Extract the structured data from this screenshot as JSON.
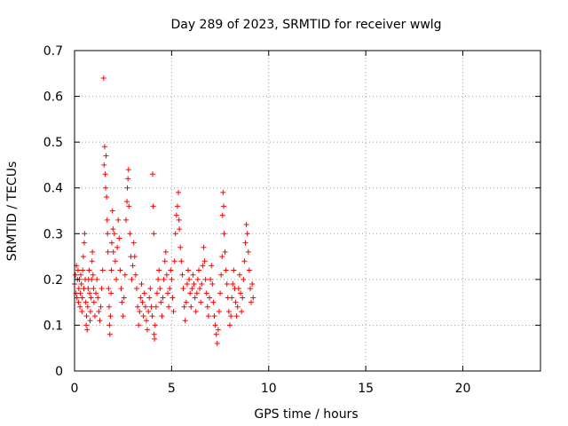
{
  "chart_data": {
    "type": "scatter",
    "title": "Day 289 of 2023, SRMTID for receiver wwlg",
    "xlabel": "GPS time / hours",
    "ylabel": "SRMTID / TECUs",
    "xlim": [
      0,
      24
    ],
    "ylim": [
      0,
      0.7
    ],
    "xticks": [
      0,
      5,
      10,
      15,
      20
    ],
    "xtick_labels": [
      "0",
      "5",
      "10",
      "15",
      "20"
    ],
    "yticks": [
      0,
      0.1,
      0.2,
      0.3,
      0.4,
      0.5,
      0.6,
      0.7
    ],
    "ytick_labels": [
      "0",
      "0.1",
      "0.2",
      "0.3",
      "0.4",
      "0.5",
      "0.6",
      "0.7"
    ],
    "grid": true,
    "marker": "+",
    "colors": {
      "marker": "#ff0000",
      "frame": "#000000",
      "grid": "#a0a0a0"
    },
    "series": [
      {
        "name": "SRMTID",
        "points": [
          [
            0.0,
            0.19
          ],
          [
            0.05,
            0.21
          ],
          [
            0.08,
            0.17
          ],
          [
            0.1,
            0.23
          ],
          [
            0.12,
            0.16
          ],
          [
            0.15,
            0.2
          ],
          [
            0.18,
            0.22
          ],
          [
            0.2,
            0.15
          ],
          [
            0.22,
            0.18
          ],
          [
            0.25,
            0.2
          ],
          [
            0.28,
            0.14
          ],
          [
            0.3,
            0.17
          ],
          [
            0.32,
            0.21
          ],
          [
            0.35,
            0.19
          ],
          [
            0.38,
            0.13
          ],
          [
            0.4,
            0.16
          ],
          [
            0.42,
            0.22
          ],
          [
            0.45,
            0.25
          ],
          [
            0.48,
            0.18
          ],
          [
            0.5,
            0.28
          ],
          [
            0.52,
            0.3
          ],
          [
            0.55,
            0.2
          ],
          [
            0.58,
            0.15
          ],
          [
            0.6,
            0.1
          ],
          [
            0.62,
            0.12
          ],
          [
            0.65,
            0.09
          ],
          [
            0.68,
            0.14
          ],
          [
            0.7,
            0.18
          ],
          [
            0.72,
            0.2
          ],
          [
            0.75,
            0.22
          ],
          [
            0.78,
            0.17
          ],
          [
            0.8,
            0.11
          ],
          [
            0.82,
            0.13
          ],
          [
            0.85,
            0.16
          ],
          [
            0.88,
            0.2
          ],
          [
            0.9,
            0.24
          ],
          [
            0.92,
            0.26
          ],
          [
            0.95,
            0.21
          ],
          [
            0.98,
            0.18
          ],
          [
            1.0,
            0.15
          ],
          [
            1.05,
            0.12
          ],
          [
            1.1,
            0.17
          ],
          [
            1.15,
            0.2
          ],
          [
            1.2,
            0.16
          ],
          [
            1.25,
            0.13
          ],
          [
            1.3,
            0.11
          ],
          [
            1.35,
            0.14
          ],
          [
            1.4,
            0.18
          ],
          [
            1.45,
            0.22
          ],
          [
            1.5,
            0.64
          ],
          [
            1.52,
            0.45
          ],
          [
            1.55,
            0.49
          ],
          [
            1.58,
            0.43
          ],
          [
            1.6,
            0.4
          ],
          [
            1.62,
            0.47
          ],
          [
            1.65,
            0.38
          ],
          [
            1.68,
            0.33
          ],
          [
            1.7,
            0.3
          ],
          [
            1.72,
            0.26
          ],
          [
            1.75,
            0.18
          ],
          [
            1.78,
            0.14
          ],
          [
            1.8,
            0.1
          ],
          [
            1.82,
            0.08
          ],
          [
            1.85,
            0.12
          ],
          [
            1.88,
            0.17
          ],
          [
            1.9,
            0.22
          ],
          [
            1.92,
            0.28
          ],
          [
            1.95,
            0.35
          ],
          [
            1.98,
            0.31
          ],
          [
            2.0,
            0.26
          ],
          [
            2.05,
            0.3
          ],
          [
            2.1,
            0.24
          ],
          [
            2.15,
            0.2
          ],
          [
            2.2,
            0.27
          ],
          [
            2.25,
            0.33
          ],
          [
            2.3,
            0.29
          ],
          [
            2.35,
            0.22
          ],
          [
            2.4,
            0.18
          ],
          [
            2.45,
            0.15
          ],
          [
            2.5,
            0.12
          ],
          [
            2.55,
            0.16
          ],
          [
            2.6,
            0.21
          ],
          [
            2.65,
            0.33
          ],
          [
            2.7,
            0.37
          ],
          [
            2.72,
            0.4
          ],
          [
            2.75,
            0.42
          ],
          [
            2.78,
            0.44
          ],
          [
            2.8,
            0.36
          ],
          [
            2.85,
            0.3
          ],
          [
            2.9,
            0.25
          ],
          [
            2.95,
            0.2
          ],
          [
            3.0,
            0.23
          ],
          [
            3.05,
            0.28
          ],
          [
            3.1,
            0.25
          ],
          [
            3.15,
            0.21
          ],
          [
            3.2,
            0.18
          ],
          [
            3.25,
            0.14
          ],
          [
            3.3,
            0.1
          ],
          [
            3.35,
            0.13
          ],
          [
            3.4,
            0.16
          ],
          [
            3.45,
            0.19
          ],
          [
            3.5,
            0.15
          ],
          [
            3.55,
            0.12
          ],
          [
            3.6,
            0.17
          ],
          [
            3.65,
            0.14
          ],
          [
            3.7,
            0.11
          ],
          [
            3.75,
            0.09
          ],
          [
            3.8,
            0.13
          ],
          [
            3.85,
            0.16
          ],
          [
            3.9,
            0.18
          ],
          [
            3.95,
            0.14
          ],
          [
            4.0,
            0.12
          ],
          [
            4.02,
            0.43
          ],
          [
            4.05,
            0.36
          ],
          [
            4.08,
            0.3
          ],
          [
            4.1,
            0.08
          ],
          [
            4.12,
            0.07
          ],
          [
            4.15,
            0.1
          ],
          [
            4.2,
            0.14
          ],
          [
            4.25,
            0.17
          ],
          [
            4.3,
            0.2
          ],
          [
            4.35,
            0.22
          ],
          [
            4.4,
            0.18
          ],
          [
            4.45,
            0.15
          ],
          [
            4.5,
            0.12
          ],
          [
            4.55,
            0.16
          ],
          [
            4.6,
            0.2
          ],
          [
            4.65,
            0.24
          ],
          [
            4.7,
            0.26
          ],
          [
            4.75,
            0.21
          ],
          [
            4.8,
            0.17
          ],
          [
            4.85,
            0.14
          ],
          [
            4.9,
            0.18
          ],
          [
            4.95,
            0.22
          ],
          [
            5.0,
            0.2
          ],
          [
            5.05,
            0.16
          ],
          [
            5.1,
            0.13
          ],
          [
            5.15,
            0.24
          ],
          [
            5.2,
            0.3
          ],
          [
            5.25,
            0.34
          ],
          [
            5.3,
            0.36
          ],
          [
            5.35,
            0.39
          ],
          [
            5.38,
            0.33
          ],
          [
            5.4,
            0.31
          ],
          [
            5.45,
            0.27
          ],
          [
            5.5,
            0.24
          ],
          [
            5.55,
            0.21
          ],
          [
            5.6,
            0.18
          ],
          [
            5.65,
            0.14
          ],
          [
            5.7,
            0.11
          ],
          [
            5.75,
            0.15
          ],
          [
            5.8,
            0.19
          ],
          [
            5.85,
            0.22
          ],
          [
            5.9,
            0.2
          ],
          [
            5.95,
            0.17
          ],
          [
            6.0,
            0.14
          ],
          [
            6.05,
            0.18
          ],
          [
            6.1,
            0.21
          ],
          [
            6.15,
            0.19
          ],
          [
            6.2,
            0.16
          ],
          [
            6.25,
            0.13
          ],
          [
            6.3,
            0.17
          ],
          [
            6.35,
            0.2
          ],
          [
            6.4,
            0.22
          ],
          [
            6.45,
            0.18
          ],
          [
            6.5,
            0.15
          ],
          [
            6.55,
            0.19
          ],
          [
            6.6,
            0.23
          ],
          [
            6.65,
            0.27
          ],
          [
            6.7,
            0.24
          ],
          [
            6.75,
            0.2
          ],
          [
            6.8,
            0.17
          ],
          [
            6.85,
            0.14
          ],
          [
            6.9,
            0.12
          ],
          [
            6.95,
            0.16
          ],
          [
            7.0,
            0.2
          ],
          [
            7.05,
            0.23
          ],
          [
            7.1,
            0.19
          ],
          [
            7.15,
            0.15
          ],
          [
            7.2,
            0.12
          ],
          [
            7.25,
            0.1
          ],
          [
            7.3,
            0.08
          ],
          [
            7.35,
            0.06
          ],
          [
            7.4,
            0.09
          ],
          [
            7.45,
            0.13
          ],
          [
            7.5,
            0.17
          ],
          [
            7.55,
            0.21
          ],
          [
            7.6,
            0.25
          ],
          [
            7.62,
            0.34
          ],
          [
            7.65,
            0.39
          ],
          [
            7.68,
            0.36
          ],
          [
            7.7,
            0.3
          ],
          [
            7.75,
            0.26
          ],
          [
            7.8,
            0.22
          ],
          [
            7.85,
            0.19
          ],
          [
            7.9,
            0.16
          ],
          [
            7.95,
            0.13
          ],
          [
            8.0,
            0.1
          ],
          [
            8.05,
            0.12
          ],
          [
            8.1,
            0.16
          ],
          [
            8.15,
            0.19
          ],
          [
            8.2,
            0.22
          ],
          [
            8.25,
            0.18
          ],
          [
            8.3,
            0.15
          ],
          [
            8.35,
            0.12
          ],
          [
            8.4,
            0.14
          ],
          [
            8.45,
            0.18
          ],
          [
            8.5,
            0.21
          ],
          [
            8.55,
            0.17
          ],
          [
            8.6,
            0.13
          ],
          [
            8.65,
            0.16
          ],
          [
            8.7,
            0.2
          ],
          [
            8.75,
            0.24
          ],
          [
            8.8,
            0.28
          ],
          [
            8.85,
            0.32
          ],
          [
            8.9,
            0.3
          ],
          [
            8.95,
            0.26
          ],
          [
            9.0,
            0.22
          ],
          [
            9.05,
            0.18
          ],
          [
            9.1,
            0.15
          ],
          [
            9.15,
            0.19
          ],
          [
            9.2,
            0.16
          ]
        ]
      }
    ]
  }
}
